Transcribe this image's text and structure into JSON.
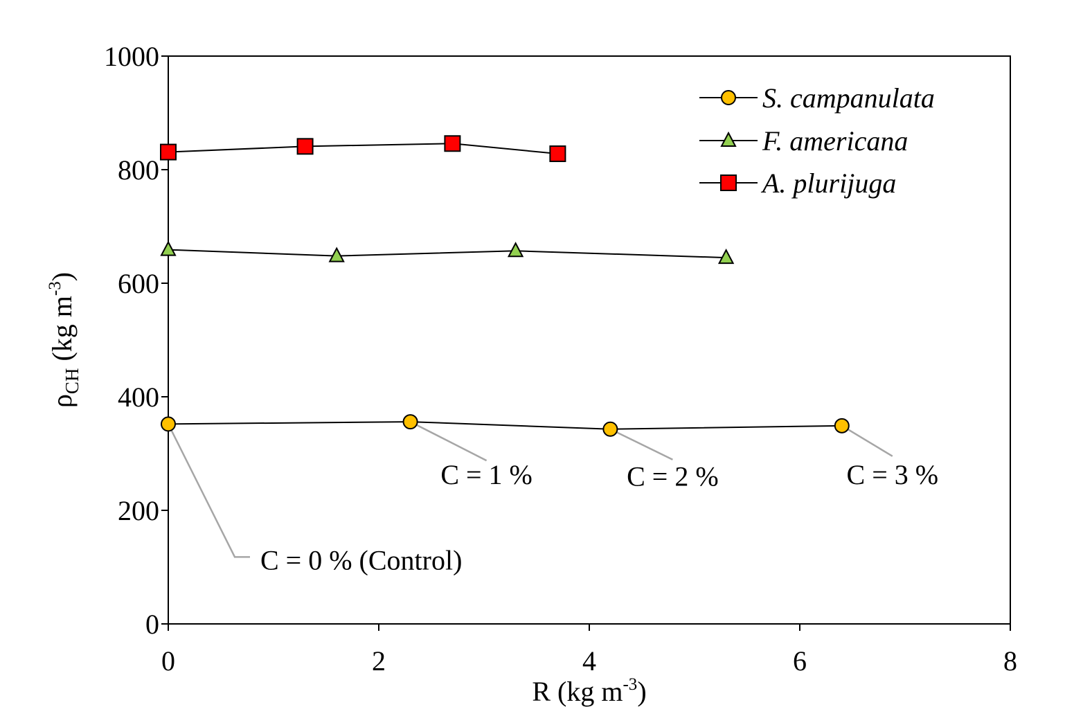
{
  "chart_data": {
    "type": "line",
    "xlabel": {
      "main": "R  (kg m",
      "sup": "-3",
      "close": ")"
    },
    "ylabel": {
      "main": "ρ",
      "sub": "CH",
      "units": "  (kg m",
      "sup": "-3",
      "close": ")"
    },
    "xlim": [
      0,
      8
    ],
    "ylim": [
      0,
      1000
    ],
    "xticks": [
      0,
      2,
      4,
      6,
      8
    ],
    "yticks": [
      0,
      200,
      400,
      600,
      800,
      1000
    ],
    "xtick_labels": [
      "0",
      "2",
      "4",
      "6",
      "8"
    ],
    "ytick_labels": [
      "0",
      "200",
      "400",
      "600",
      "800",
      "1000"
    ],
    "legend_position": "top-right",
    "series": [
      {
        "name": "S. campanulata",
        "marker": "circle",
        "color": "#FFC000",
        "x": [
          0,
          2.3,
          4.2,
          6.4
        ],
        "y": [
          352,
          356,
          343,
          349
        ]
      },
      {
        "name": "F. americana",
        "marker": "triangle",
        "color": "#92D050",
        "x": [
          0,
          1.6,
          3.3,
          5.3
        ],
        "y": [
          659,
          648,
          657,
          645
        ]
      },
      {
        "name": "A. plurijuga",
        "marker": "square",
        "color": "#FF0000",
        "x": [
          0,
          1.3,
          2.7,
          3.7
        ],
        "y": [
          831,
          841,
          846,
          828
        ]
      }
    ],
    "annotations": [
      {
        "text": "C = 0 % (Control)",
        "x": 0,
        "y": 352
      },
      {
        "text": "C = 1 %",
        "x": 2.3,
        "y": 356
      },
      {
        "text": "C = 2 %",
        "x": 4.2,
        "y": 343
      },
      {
        "text": "C = 3 %",
        "x": 6.4,
        "y": 349
      }
    ],
    "annotation_line_color": "#A6A6A6"
  }
}
